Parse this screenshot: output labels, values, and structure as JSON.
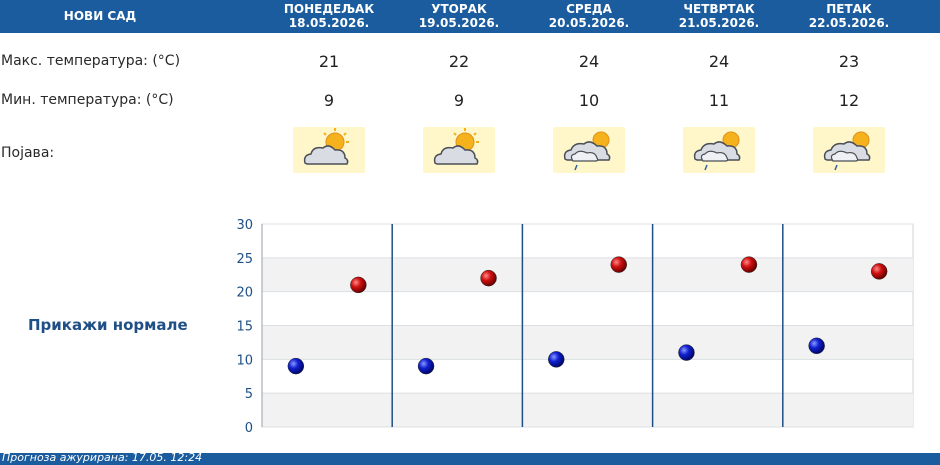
{
  "header": {
    "city": "НОВИ САД",
    "days": [
      {
        "name": "ПОНЕДЕЉАК",
        "date": "18.05.2026."
      },
      {
        "name": "УТОРАК",
        "date": "19.05.2026."
      },
      {
        "name": "СРЕДА",
        "date": "20.05.2026."
      },
      {
        "name": "ЧЕТВРТАК",
        "date": "21.05.2026."
      },
      {
        "name": "ПЕТАК",
        "date": "22.05.2026."
      }
    ]
  },
  "rows": {
    "max_label": "Макс. температура: (°C)",
    "min_label": "Мин. температура: (°C)",
    "phenomenon_label": "Појава:",
    "max_values": [
      "21",
      "22",
      "24",
      "24",
      "23"
    ],
    "min_values": [
      "9",
      "9",
      "10",
      "11",
      "12"
    ],
    "icons": [
      "partly-cloudy-sun-icon",
      "partly-cloudy-sun-icon",
      "cloudy-sun-rain-icon",
      "cloudy-sun-rain-icon",
      "cloudy-sun-rain-icon"
    ]
  },
  "normals_link": "Прикажи нормале",
  "chart_data": {
    "type": "scatter",
    "ylim": [
      0,
      30
    ],
    "yticks": [
      "0",
      "5",
      "10",
      "15",
      "20",
      "25",
      "30"
    ],
    "series": [
      {
        "values": [
          9,
          9,
          10,
          11,
          12
        ],
        "color": "#0a14c8"
      },
      {
        "values": [
          21,
          22,
          24,
          24,
          23
        ],
        "color": "#c80a0a"
      }
    ],
    "grid": true
  },
  "footer": {
    "text": "Прогноза ажурирана:  17.05. 12:24"
  },
  "colors": {
    "header": "#1a5c9e",
    "divider": "#1f4f86",
    "max_marker": "#c80a0a",
    "min_marker": "#0a14c8"
  }
}
